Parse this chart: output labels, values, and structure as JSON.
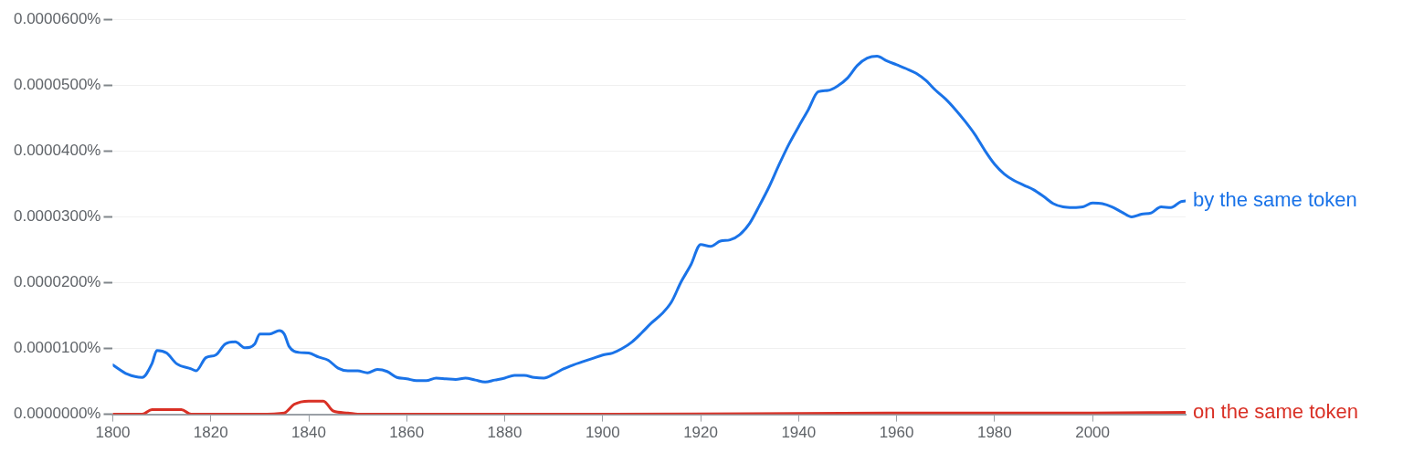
{
  "chart_data": {
    "type": "line",
    "xlim": [
      1800,
      2019
    ],
    "xticks": [
      1800,
      1820,
      1840,
      1860,
      1880,
      1900,
      1920,
      1940,
      1960,
      1980,
      2000
    ],
    "ylim": [
      0,
      6e-05
    ],
    "yticks": [
      {
        "value": 0,
        "label": "0.0000000%"
      },
      {
        "value": 1e-05,
        "label": "0.0000100%"
      },
      {
        "value": 2e-05,
        "label": "0.0000200%"
      },
      {
        "value": 3e-05,
        "label": "0.0000300%"
      },
      {
        "value": 4e-05,
        "label": "0.0000400%"
      },
      {
        "value": 5e-05,
        "label": "0.0000500%"
      },
      {
        "value": 6e-05,
        "label": "0.0000600%"
      }
    ],
    "grid": "y",
    "marker": "none",
    "line_style": "solid",
    "series": [
      {
        "name": "by the same token",
        "color": "#1a73e8",
        "x": [
          1800,
          1803,
          1806,
          1808,
          1809,
          1811,
          1813,
          1816,
          1817,
          1819,
          1821,
          1823,
          1825,
          1827,
          1829,
          1830,
          1832,
          1834,
          1835,
          1836,
          1838,
          1840,
          1842,
          1844,
          1846,
          1848,
          1850,
          1852,
          1854,
          1856,
          1858,
          1860,
          1862,
          1864,
          1866,
          1868,
          1870,
          1872,
          1874,
          1876,
          1878,
          1880,
          1882,
          1884,
          1886,
          1888,
          1890,
          1892,
          1894,
          1896,
          1898,
          1900,
          1902,
          1904,
          1906,
          1908,
          1910,
          1912,
          1914,
          1916,
          1918,
          1920,
          1922,
          1924,
          1926,
          1928,
          1930,
          1932,
          1934,
          1936,
          1938,
          1940,
          1942,
          1944,
          1946,
          1948,
          1950,
          1952,
          1954,
          1956,
          1958,
          1960,
          1962,
          1964,
          1966,
          1968,
          1970,
          1972,
          1974,
          1976,
          1978,
          1980,
          1982,
          1984,
          1986,
          1988,
          1990,
          1992,
          1994,
          1996,
          1998,
          2000,
          2002,
          2004,
          2006,
          2008,
          2010,
          2012,
          2014,
          2016,
          2018,
          2019
        ],
        "values": [
          7.5e-06,
          6.1e-06,
          5.6e-06,
          7.7e-06,
          9.7e-06,
          9.3e-06,
          7.7e-06,
          6.9e-06,
          6.6e-06,
          8.6e-06,
          9e-06,
          1.07e-05,
          1.1e-05,
          1.01e-05,
          1.07e-05,
          1.22e-05,
          1.22e-05,
          1.27e-05,
          1.22e-05,
          1.03e-05,
          9.4e-06,
          9.3e-06,
          8.7e-06,
          8.2e-06,
          7e-06,
          6.6e-06,
          6.6e-06,
          6.3e-06,
          6.8e-06,
          6.5e-06,
          5.6e-06,
          5.4e-06,
          5.1e-06,
          5.1e-06,
          5.5e-06,
          5.4e-06,
          5.3e-06,
          5.5e-06,
          5.2e-06,
          4.9e-06,
          5.2e-06,
          5.5e-06,
          5.9e-06,
          5.9e-06,
          5.6e-06,
          5.5e-06,
          6.1e-06,
          6.9e-06,
          7.5e-06,
          8e-06,
          8.5e-06,
          9e-06,
          9.3e-06,
          1e-05,
          1.1e-05,
          1.24e-05,
          1.39e-05,
          1.52e-05,
          1.7e-05,
          2.01e-05,
          2.27e-05,
          2.58e-05,
          2.55e-05,
          2.63e-05,
          2.65e-05,
          2.73e-05,
          2.9e-05,
          3.17e-05,
          3.46e-05,
          3.79e-05,
          4.1e-05,
          4.37e-05,
          4.63e-05,
          4.9e-05,
          4.92e-05,
          4.99e-05,
          5.11e-05,
          5.3e-05,
          5.41e-05,
          5.44e-05,
          5.37e-05,
          5.31e-05,
          5.25e-05,
          5.18e-05,
          5.07e-05,
          4.92e-05,
          4.79e-05,
          4.63e-05,
          4.45e-05,
          4.25e-05,
          4.01e-05,
          3.8e-05,
          3.65e-05,
          3.55e-05,
          3.48e-05,
          3.41e-05,
          3.31e-05,
          3.2e-05,
          3.15e-05,
          3.14e-05,
          3.15e-05,
          3.21e-05,
          3.2e-05,
          3.15e-05,
          3.07e-05,
          3e-05,
          3.04e-05,
          3.06e-05,
          3.15e-05,
          3.14e-05,
          3.23e-05,
          3.24e-05
        ]
      },
      {
        "name": "on the same token",
        "color": "#d93025",
        "x": [
          1800,
          1806,
          1808,
          1812,
          1814,
          1816,
          1830,
          1835,
          1837,
          1840,
          1843,
          1845,
          1848,
          1850,
          1900,
          1960,
          2000,
          2019
        ],
        "values": [
          0,
          0,
          7e-07,
          7e-07,
          7e-07,
          0,
          0,
          2e-07,
          1.5e-06,
          2e-06,
          2e-06,
          5e-07,
          2e-07,
          0,
          0,
          2e-07,
          2e-07,
          3e-07
        ]
      }
    ]
  }
}
